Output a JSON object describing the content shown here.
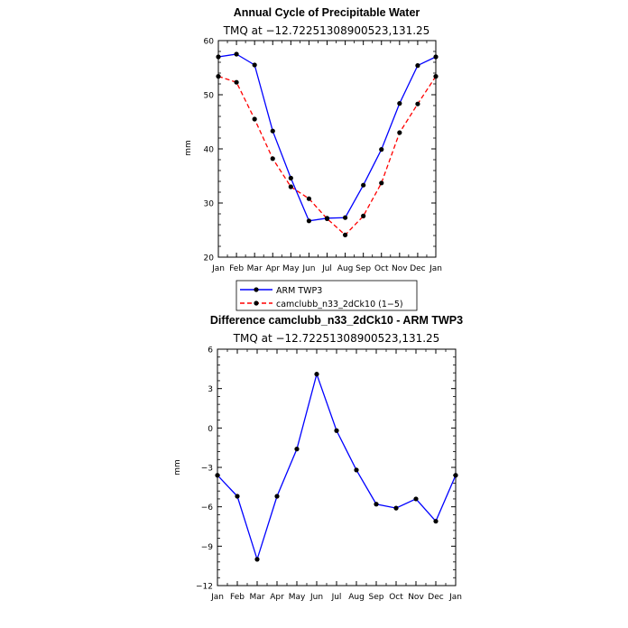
{
  "chart_data": [
    {
      "type": "line",
      "title": "Annual Cycle of Precipitable Water",
      "subtitle": "TMQ at −12.72251308900523,131.25",
      "ylabel": "mm",
      "xlabel": "",
      "categories": [
        "Jan",
        "Feb",
        "Mar",
        "Apr",
        "May",
        "Jun",
        "Jul",
        "Aug",
        "Sep",
        "Oct",
        "Nov",
        "Dec",
        "Jan"
      ],
      "ylim": [
        20,
        60
      ],
      "yticks": [
        "20",
        "30",
        "40",
        "50",
        "60"
      ],
      "series": [
        {
          "name": "ARM TWP3",
          "color": "#0000ff",
          "dash": "solid",
          "values": [
            57.0,
            57.5,
            55.5,
            43.3,
            34.6,
            26.7,
            27.2,
            27.3,
            33.3,
            39.9,
            48.4,
            55.4,
            57.0
          ]
        },
        {
          "name": "camclubb_n33_2dCk10 (1−5)",
          "color": "#ff0000",
          "dash": "dashed",
          "values": [
            53.4,
            52.3,
            45.5,
            38.2,
            33.0,
            30.8,
            27.1,
            24.1,
            27.6,
            33.7,
            43.0,
            48.3,
            53.4
          ]
        }
      ],
      "grid": false,
      "legend": "below"
    },
    {
      "type": "line",
      "title": "Difference camclubb_n33_2dCk10 - ARM TWP3",
      "subtitle": "TMQ at −12.72251308900523,131.25",
      "ylabel": "mm",
      "xlabel": "",
      "categories": [
        "Jan",
        "Feb",
        "Mar",
        "Apr",
        "May",
        "Jun",
        "Jul",
        "Aug",
        "Sep",
        "Oct",
        "Nov",
        "Dec",
        "Jan"
      ],
      "ylim": [
        -12,
        6
      ],
      "yticks": [
        "−12",
        "−9",
        "−6",
        "−3",
        "0",
        "3",
        "6"
      ],
      "series": [
        {
          "color": "#0000ff",
          "dash": "solid",
          "values": [
            -3.6,
            -5.2,
            -10.0,
            -5.2,
            -1.6,
            4.1,
            -0.2,
            -3.2,
            -5.8,
            -6.1,
            -5.4,
            -7.1,
            -3.6
          ]
        }
      ],
      "grid": false
    }
  ]
}
